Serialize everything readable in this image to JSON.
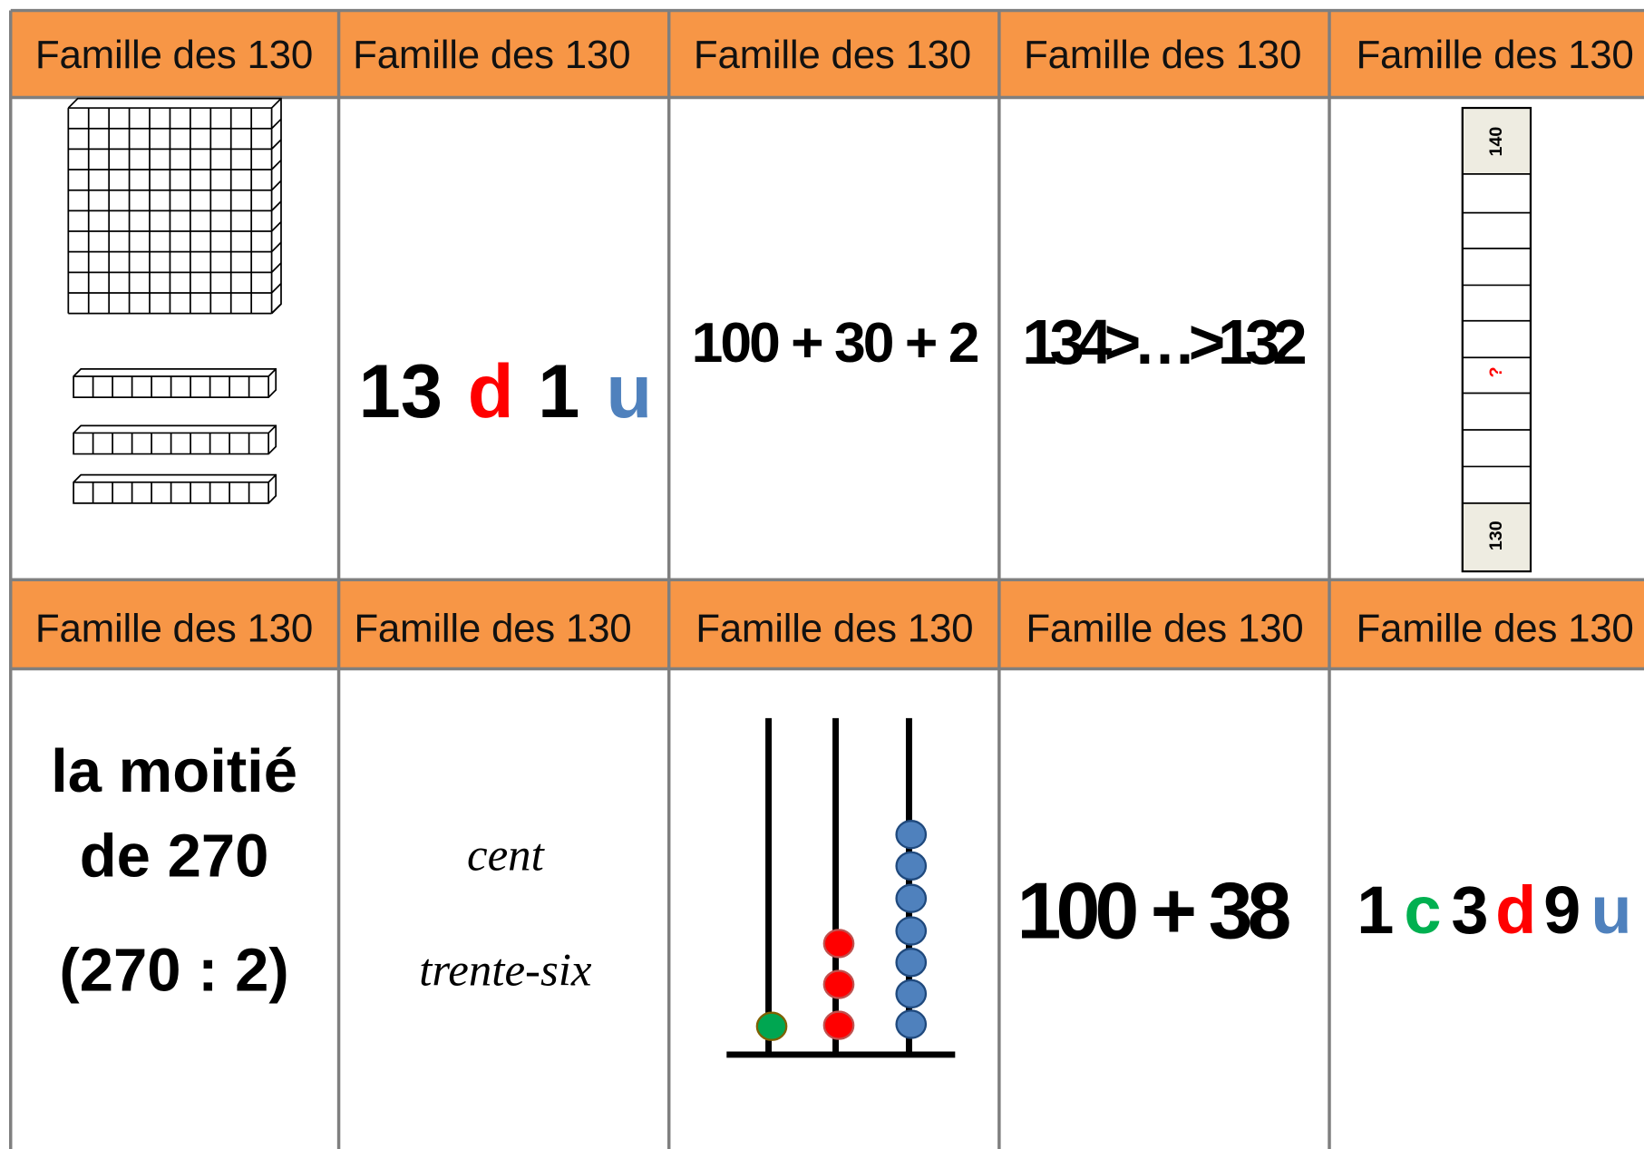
{
  "cards": [
    {
      "header": "Famille des 130"
    },
    {
      "header": "Famille des 130",
      "parts": [
        "13",
        "d",
        "1",
        "u"
      ]
    },
    {
      "header": "Famille des 130",
      "text": "100 + 30 + 2"
    },
    {
      "header": "Famille des 130",
      "text": "134>…>132"
    },
    {
      "header": "Famille des 130",
      "top": "140",
      "middle": "?",
      "bottom": "130"
    },
    {
      "header": "Famille des 130",
      "lines": [
        "la moitié",
        "de 270",
        "(270 : 2)"
      ]
    },
    {
      "header": "Famille des 130",
      "lines": [
        "cent",
        "trente-six"
      ]
    },
    {
      "header": "Famille des 130"
    },
    {
      "header": "Famille des 130",
      "text": "100 + 38"
    },
    {
      "header": "Famille des 130",
      "parts": [
        "1",
        "c",
        "3",
        "d",
        "9",
        "u"
      ]
    }
  ]
}
